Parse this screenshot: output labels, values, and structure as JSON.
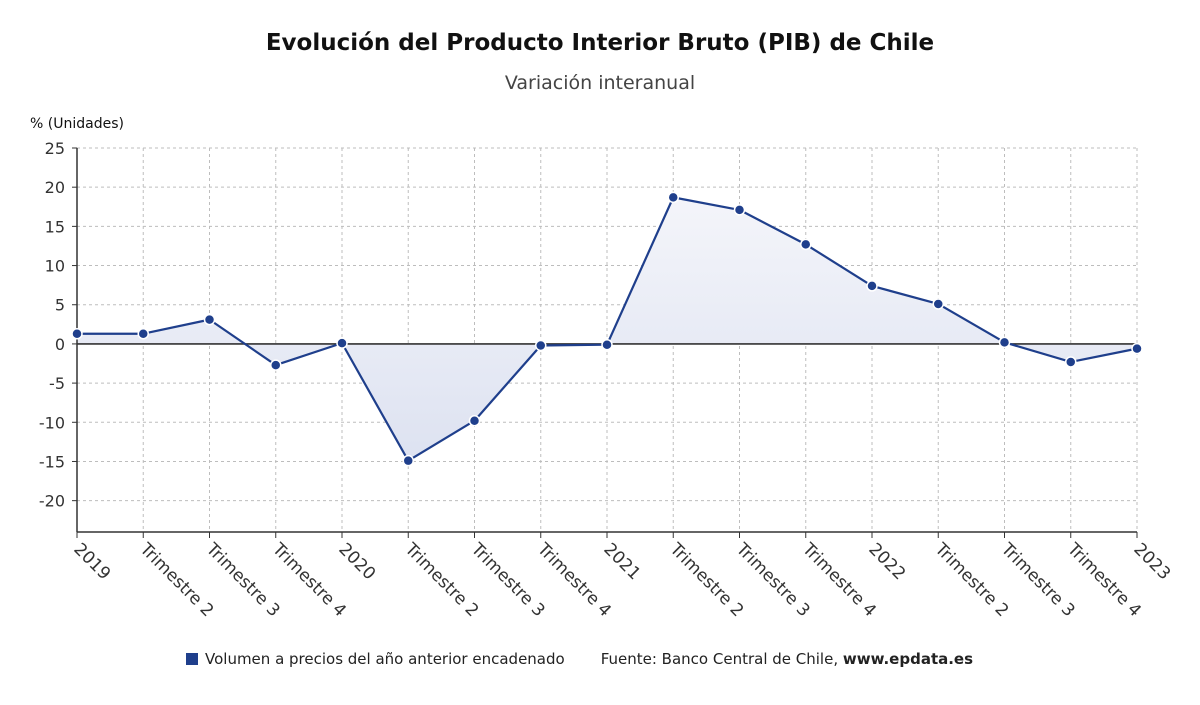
{
  "chart_data": {
    "type": "area",
    "title": "Evolución del Producto Interior Bruto (PIB) de Chile",
    "subtitle": "Variación interanual",
    "ylabel": "% (Unidades)",
    "xlabel": "",
    "ylim": [
      -24,
      25
    ],
    "yticks": [
      25,
      20,
      15,
      10,
      5,
      0,
      -5,
      -10,
      -15,
      -20
    ],
    "grid": true,
    "legend_position": "bottom",
    "categories": [
      "2019",
      "Trimestre 2",
      "Trimestre 3",
      "Trimestre 4",
      "2020",
      "Trimestre 2",
      "Trimestre 3",
      "Trimestre 4",
      "2021",
      "Trimestre 2",
      "Trimestre 3",
      "Trimestre 4",
      "2022",
      "Trimestre 2",
      "Trimestre 3",
      "Trimestre 4",
      "2023"
    ],
    "series": [
      {
        "name": "Volumen a precios del año anterior encadenado",
        "color": "#1f3f8c",
        "values": [
          1.3,
          1.3,
          3.1,
          -2.7,
          0.1,
          -14.9,
          -9.8,
          -0.2,
          -0.1,
          18.7,
          17.1,
          12.7,
          7.4,
          5.1,
          0.2,
          -2.3,
          -0.6
        ]
      }
    ]
  },
  "legend": {
    "series_label": "Volumen a precios del año anterior encadenado",
    "source_prefix": "Fuente: Banco Central de Chile, ",
    "source_site": "www.epdata.es"
  },
  "colors": {
    "line": "#1f3f8c",
    "fill": "#e3e7f3",
    "grid": "#bdbdbd",
    "axis": "#333333"
  }
}
